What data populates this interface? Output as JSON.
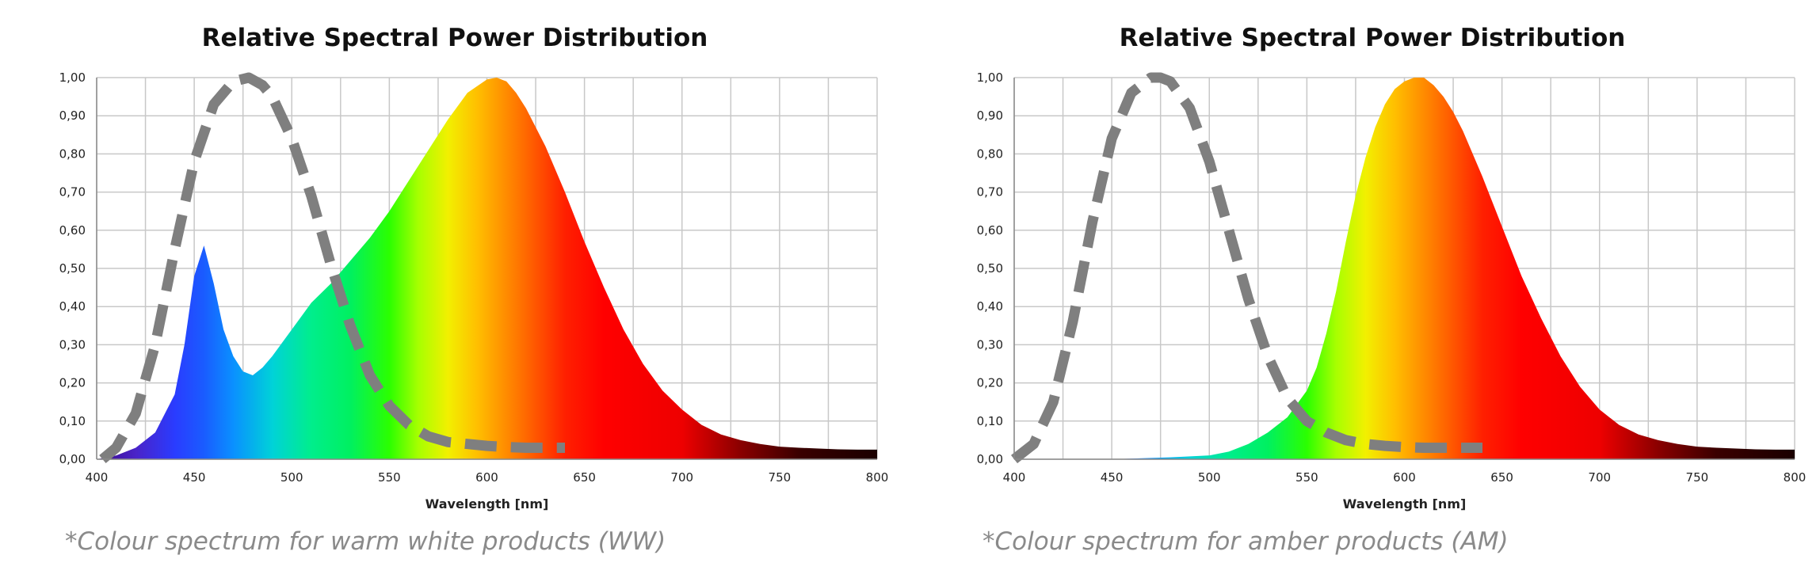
{
  "chart_data": [
    {
      "type": "area",
      "title": "Relative Spectral Power Distribution",
      "xlabel": "Wavelength [nm]",
      "ylabel": "",
      "xlim": [
        400,
        800
      ],
      "ylim": [
        0,
        1
      ],
      "xticks": [
        "400",
        "450",
        "500",
        "550",
        "600",
        "650",
        "700",
        "750",
        "800"
      ],
      "yticks": [
        "0,00",
        "0,10",
        "0,20",
        "0,30",
        "0,40",
        "0,50",
        "0,60",
        "0,70",
        "0,80",
        "0,90",
        "1,00"
      ],
      "grid": true,
      "caption": "*Colour spectrum for warm white products (WW)",
      "series": [
        {
          "style": "spectrum-fill",
          "x": [
            400,
            410,
            420,
            430,
            440,
            445,
            450,
            455,
            460,
            465,
            470,
            475,
            480,
            485,
            490,
            500,
            510,
            520,
            530,
            540,
            550,
            560,
            570,
            580,
            590,
            600,
            605,
            610,
            615,
            620,
            630,
            640,
            650,
            660,
            670,
            680,
            690,
            700,
            710,
            720,
            730,
            740,
            750,
            760,
            770,
            780,
            790,
            800
          ],
          "y": [
            0.0,
            0.01,
            0.03,
            0.07,
            0.17,
            0.3,
            0.48,
            0.56,
            0.46,
            0.34,
            0.27,
            0.23,
            0.22,
            0.24,
            0.27,
            0.34,
            0.41,
            0.46,
            0.52,
            0.58,
            0.65,
            0.73,
            0.81,
            0.89,
            0.96,
            0.995,
            1.0,
            0.99,
            0.96,
            0.92,
            0.82,
            0.7,
            0.57,
            0.45,
            0.34,
            0.25,
            0.18,
            0.13,
            0.09,
            0.065,
            0.05,
            0.04,
            0.033,
            0.03,
            0.028,
            0.026,
            0.025,
            0.025
          ]
        },
        {
          "style": "dashed-gray",
          "x": [
            403,
            410,
            420,
            430,
            440,
            450,
            460,
            470,
            478,
            485,
            490,
            500,
            510,
            520,
            530,
            540,
            550,
            560,
            570,
            580,
            590,
            600,
            610,
            620,
            630,
            640
          ],
          "y": [
            0.0,
            0.03,
            0.12,
            0.3,
            0.55,
            0.78,
            0.93,
            0.99,
            1.0,
            0.98,
            0.95,
            0.84,
            0.69,
            0.51,
            0.35,
            0.22,
            0.14,
            0.09,
            0.06,
            0.045,
            0.04,
            0.035,
            0.032,
            0.03,
            0.03,
            0.03
          ]
        }
      ]
    },
    {
      "type": "area",
      "title": "Relative Spectral Power Distribution",
      "xlabel": "Wavelength [nm]",
      "ylabel": "",
      "xlim": [
        400,
        800
      ],
      "ylim": [
        0,
        1
      ],
      "xticks": [
        "400",
        "450",
        "500",
        "550",
        "600",
        "650",
        "700",
        "750",
        "800"
      ],
      "yticks": [
        "0,00",
        "0,10",
        "0,20",
        "0,30",
        "0,40",
        "0,50",
        "0,60",
        "0,70",
        "0,80",
        "0,90",
        "1,00"
      ],
      "grid": true,
      "caption": "*Colour spectrum for amber products (AM)",
      "series": [
        {
          "style": "spectrum-fill",
          "x": [
            400,
            450,
            480,
            500,
            510,
            520,
            530,
            540,
            550,
            555,
            560,
            565,
            570,
            575,
            580,
            585,
            590,
            595,
            600,
            605,
            610,
            615,
            620,
            625,
            630,
            640,
            650,
            660,
            670,
            680,
            690,
            700,
            710,
            720,
            730,
            740,
            750,
            760,
            770,
            780,
            790,
            800
          ],
          "y": [
            0.0,
            0.0,
            0.005,
            0.01,
            0.02,
            0.04,
            0.07,
            0.11,
            0.18,
            0.24,
            0.33,
            0.44,
            0.57,
            0.69,
            0.79,
            0.87,
            0.93,
            0.97,
            0.99,
            1.0,
            1.0,
            0.98,
            0.95,
            0.91,
            0.86,
            0.74,
            0.61,
            0.48,
            0.37,
            0.27,
            0.19,
            0.13,
            0.09,
            0.065,
            0.05,
            0.04,
            0.033,
            0.03,
            0.028,
            0.026,
            0.025,
            0.025
          ]
        },
        {
          "style": "dashed-gray",
          "x": [
            400,
            410,
            420,
            430,
            440,
            450,
            460,
            470,
            475,
            480,
            490,
            500,
            510,
            520,
            530,
            540,
            550,
            560,
            570,
            580,
            590,
            600,
            610,
            620,
            630,
            640
          ],
          "y": [
            0.0,
            0.04,
            0.15,
            0.36,
            0.62,
            0.84,
            0.96,
            1.0,
            1.0,
            0.99,
            0.92,
            0.78,
            0.6,
            0.42,
            0.27,
            0.16,
            0.1,
            0.07,
            0.05,
            0.04,
            0.035,
            0.032,
            0.03,
            0.03,
            0.03,
            0.03
          ]
        }
      ]
    }
  ]
}
